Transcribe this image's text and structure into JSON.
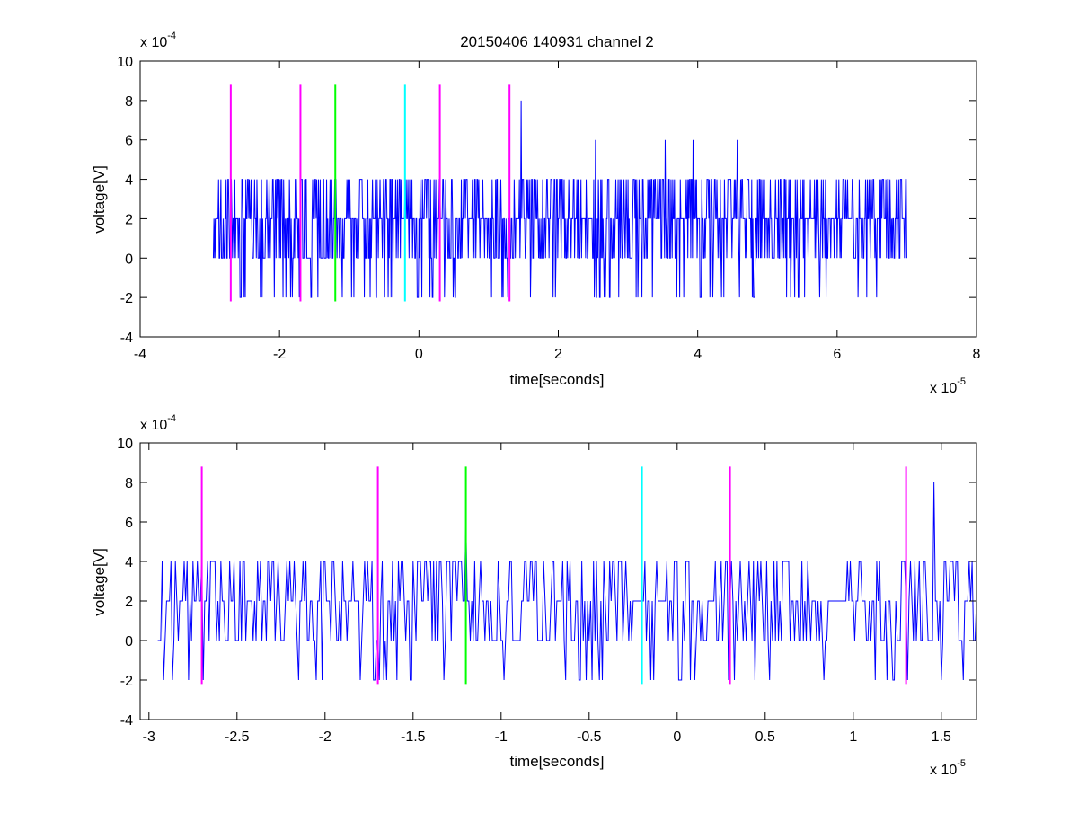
{
  "figure": {
    "title": "20150406 140931 channel 2"
  },
  "colors": {
    "signal": "#0000ff",
    "magenta": "#ff00ff",
    "green": "#00ff00",
    "cyan": "#00ffff",
    "axes": "#000000"
  },
  "chart_data": [
    {
      "type": "line",
      "title": "20150406 140931 channel 2",
      "xlabel": "time[seconds]",
      "ylabel": "voltage[V]",
      "x_exponent": "x 10",
      "x_exponent_power": "-5",
      "y_exponent": "x 10",
      "y_exponent_power": "-4",
      "xlim": [
        -4,
        8
      ],
      "ylim": [
        -4,
        10
      ],
      "x_ticks": [
        -4,
        -2,
        0,
        2,
        4,
        6,
        8
      ],
      "x_tick_labels": [
        "-4",
        "-2",
        "0",
        "2",
        "4",
        "6",
        "8"
      ],
      "y_ticks": [
        -4,
        -2,
        0,
        2,
        4,
        6,
        8,
        10
      ],
      "y_tick_labels": [
        "-4",
        "-2",
        "0",
        "2",
        "4",
        "6",
        "8",
        "10"
      ],
      "grid": false,
      "series": [
        {
          "color": "#0000ff",
          "x_range": [
            -2.95,
            7.0
          ],
          "x": [
            -2.95,
            -1.72,
            -1.2,
            1.47,
            2.53,
            3.53,
            3.93,
            4.57,
            6.99
          ],
          "y": [
            0,
            -2,
            4,
            8,
            6,
            6,
            6,
            6,
            4
          ],
          "levels": [
            -2,
            0,
            2,
            4,
            6,
            8
          ]
        }
      ],
      "vlines": [
        {
          "x": -2.7,
          "color": "#ff00ff",
          "y": [
            -2.2,
            8.8
          ]
        },
        {
          "x": -1.7,
          "color": "#ff00ff",
          "y": [
            -2.2,
            8.8
          ]
        },
        {
          "x": -1.2,
          "color": "#00ff00",
          "y": [
            -2.2,
            8.8
          ]
        },
        {
          "x": -0.2,
          "color": "#00ffff",
          "y": [
            -2.2,
            8.8
          ]
        },
        {
          "x": 0.3,
          "color": "#ff00ff",
          "y": [
            -2.2,
            8.8
          ]
        },
        {
          "x": 1.3,
          "color": "#ff00ff",
          "y": [
            -2.2,
            8.8
          ]
        }
      ]
    },
    {
      "type": "line",
      "xlabel": "time[seconds]",
      "ylabel": "voltage[V]",
      "x_exponent": "x 10",
      "x_exponent_power": "-5",
      "y_exponent": "x 10",
      "y_exponent_power": "-4",
      "xlim": [
        -3.05,
        1.7
      ],
      "ylim": [
        -4,
        10
      ],
      "x_ticks": [
        -3,
        -2.5,
        -2,
        -1.5,
        -1,
        -0.5,
        0,
        0.5,
        1,
        1.5
      ],
      "x_tick_labels": [
        "-3",
        "-2.5",
        "-2",
        "-1.5",
        "-1",
        "-0.5",
        "0",
        "0.5",
        "1",
        "1.5"
      ],
      "y_ticks": [
        -4,
        -2,
        0,
        2,
        4,
        6,
        8,
        10
      ],
      "y_tick_labels": [
        "-4",
        "-2",
        "0",
        "2",
        "4",
        "6",
        "8",
        "10"
      ],
      "grid": false,
      "series": [
        {
          "color": "#0000ff",
          "x_range": [
            -2.95,
            1.7
          ],
          "x": [
            -2.95,
            -2.15,
            -1.72,
            -1.2,
            1.46,
            1.5,
            1.7
          ],
          "y": [
            0,
            -2,
            -2,
            6,
            8,
            -2,
            2
          ],
          "levels": [
            -2,
            0,
            2,
            4,
            6,
            8
          ]
        }
      ],
      "vlines": [
        {
          "x": -2.7,
          "color": "#ff00ff",
          "y": [
            -2.2,
            8.8
          ]
        },
        {
          "x": -1.7,
          "color": "#ff00ff",
          "y": [
            -2.2,
            8.8
          ]
        },
        {
          "x": -1.2,
          "color": "#00ff00",
          "y": [
            -2.2,
            8.8
          ]
        },
        {
          "x": -0.2,
          "color": "#00ffff",
          "y": [
            -2.2,
            8.8
          ]
        },
        {
          "x": 0.3,
          "color": "#ff00ff",
          "y": [
            -2.2,
            8.8
          ]
        },
        {
          "x": 1.3,
          "color": "#ff00ff",
          "y": [
            -2.2,
            8.8
          ]
        }
      ]
    }
  ]
}
